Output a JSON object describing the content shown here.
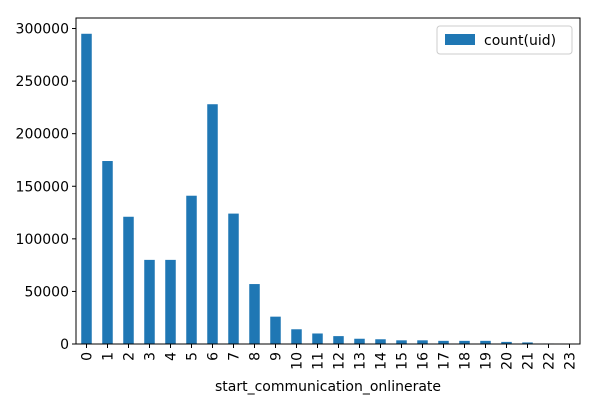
{
  "chart_data": {
    "type": "bar",
    "title": "",
    "xlabel": "start_communication_onlinerate",
    "ylabel": "",
    "categories": [
      "0",
      "1",
      "2",
      "3",
      "4",
      "5",
      "6",
      "7",
      "8",
      "9",
      "10",
      "11",
      "12",
      "13",
      "14",
      "15",
      "16",
      "17",
      "18",
      "19",
      "20",
      "21",
      "22",
      "23"
    ],
    "series": [
      {
        "name": "count(uid)",
        "color": "#1f77b4",
        "values": [
          295000,
          174000,
          121000,
          80000,
          80000,
          141000,
          228000,
          124000,
          57000,
          26000,
          14000,
          10000,
          7500,
          5000,
          4500,
          3500,
          3500,
          3000,
          3000,
          3000,
          2000,
          1500,
          500,
          300
        ]
      }
    ],
    "ylim": [
      0,
      310000
    ],
    "yticks": [
      0,
      50000,
      100000,
      150000,
      200000,
      250000,
      300000
    ],
    "ytick_labels": [
      "0",
      "50000",
      "100000",
      "150000",
      "200000",
      "250000",
      "300000"
    ],
    "legend": {
      "position": "top-right"
    },
    "grid": false
  }
}
